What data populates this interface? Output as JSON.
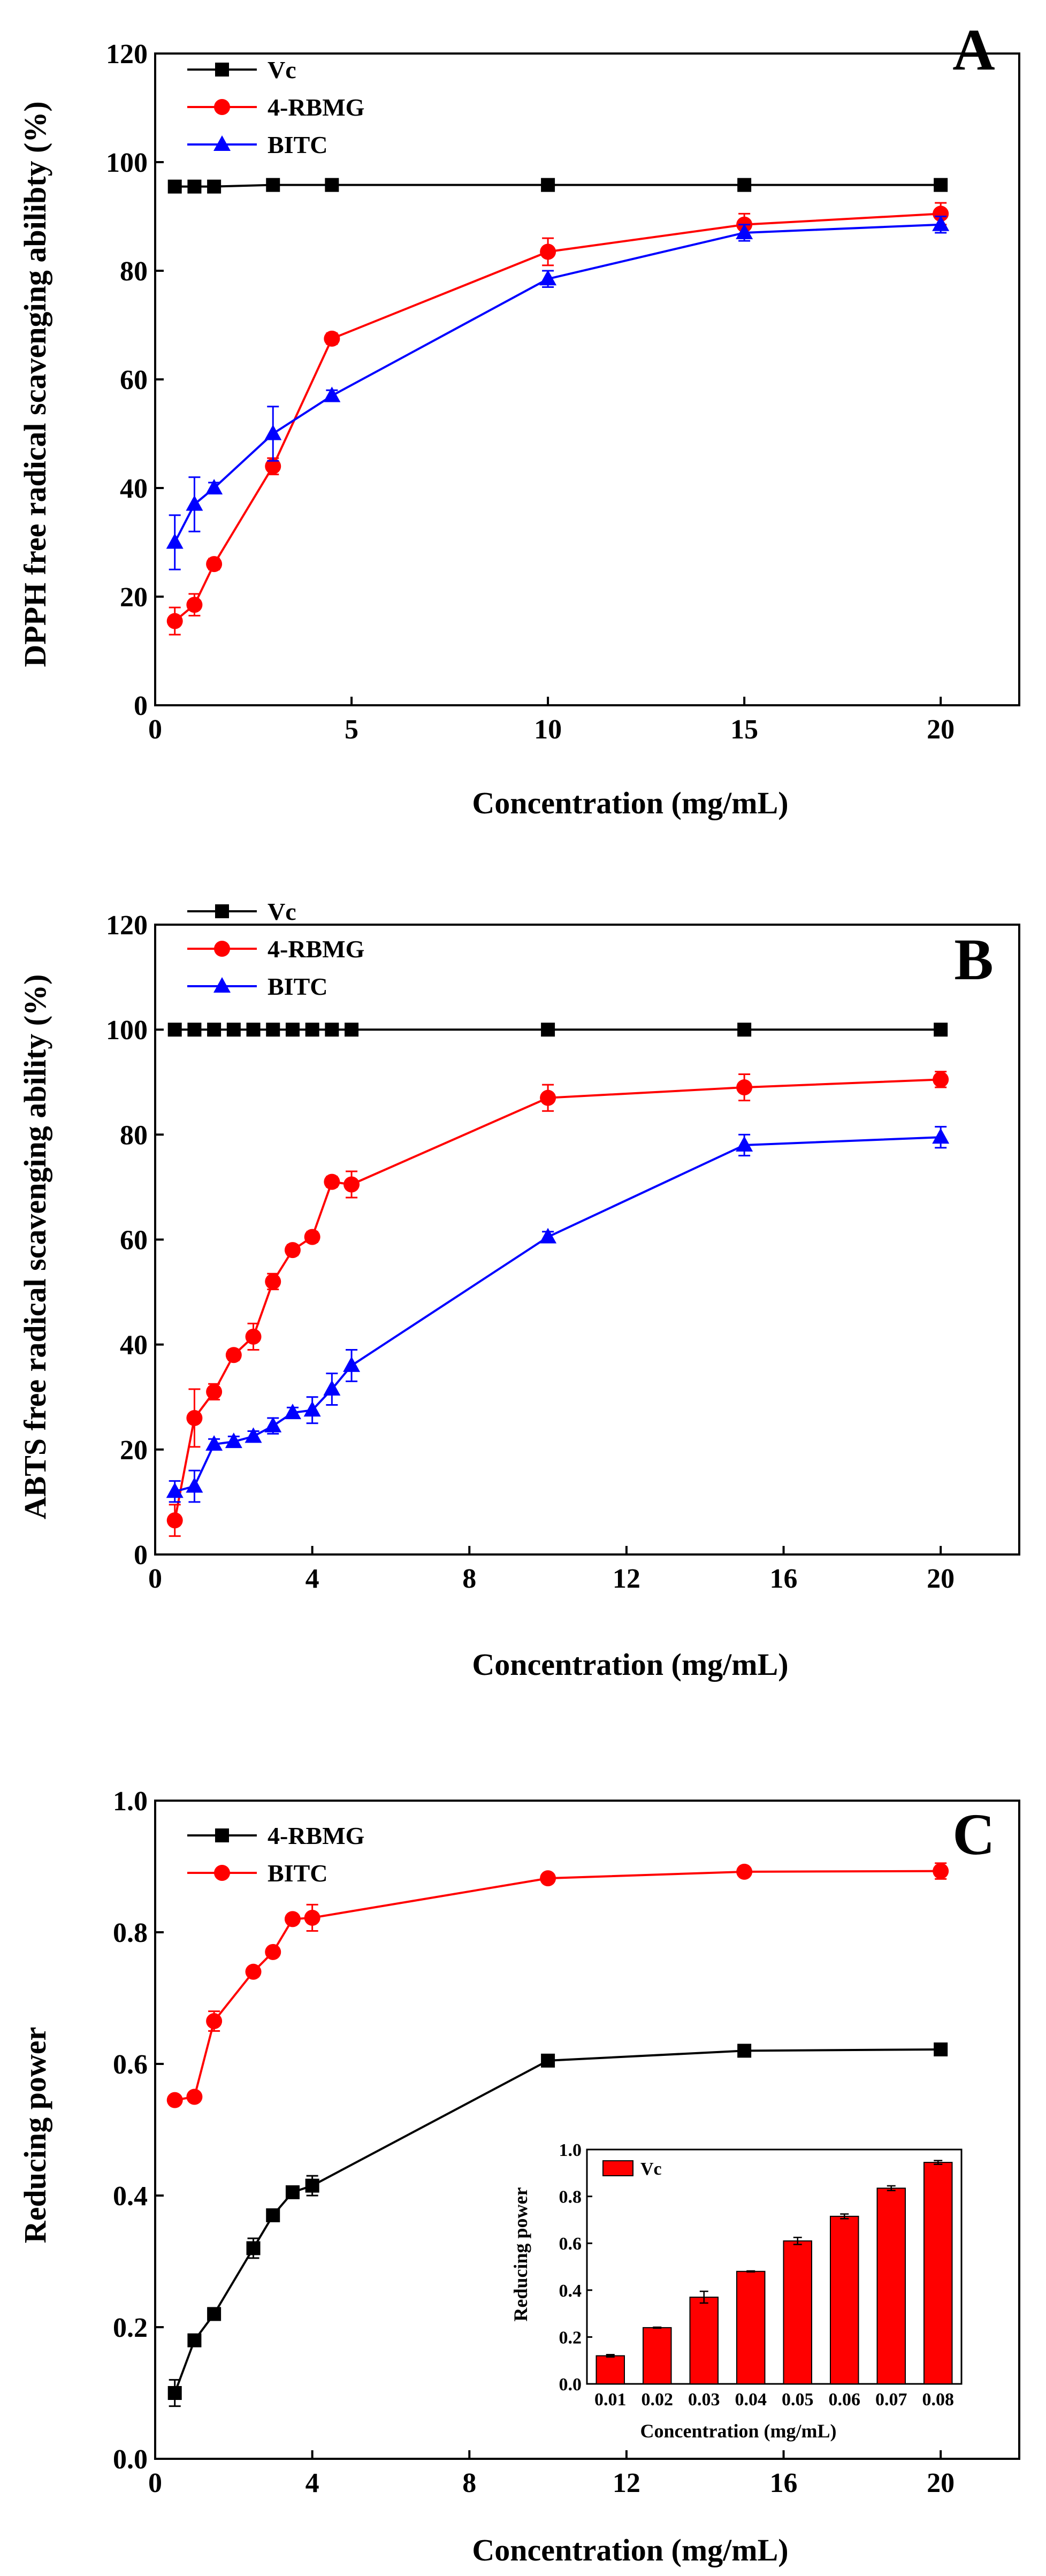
{
  "chart_data": [
    {
      "type": "line",
      "panel": "A",
      "xlabel": "Concentration (mg/mL)",
      "ylabel": "DPPH free radical scavenging abilibty (%)",
      "xlim": [
        0,
        22
      ],
      "ylim": [
        0,
        120
      ],
      "xticks": [
        0,
        5,
        10,
        15,
        20
      ],
      "yticks": [
        0,
        20,
        40,
        60,
        80,
        100,
        120
      ],
      "legend_position": "top-left",
      "series": [
        {
          "name": "Vc",
          "color": "#000000",
          "marker": "square",
          "x": [
            0.5,
            1,
            1.5,
            3,
            4.5,
            10,
            15,
            20
          ],
          "y": [
            95.5,
            95.5,
            95.5,
            95.8,
            95.8,
            95.8,
            95.8,
            95.8
          ],
          "err": [
            0.5,
            0.5,
            0.5,
            0.5,
            0.5,
            0.5,
            0.5,
            0.5
          ]
        },
        {
          "name": "4-RBMG",
          "color": "#ff0000",
          "marker": "circle",
          "x": [
            0.5,
            1,
            1.5,
            3,
            4.5,
            10,
            15,
            20
          ],
          "y": [
            15.5,
            18.5,
            26,
            44,
            67.5,
            83.5,
            88.5,
            90.5
          ],
          "err": [
            2.5,
            2,
            1,
            1.5,
            1,
            2.5,
            2,
            2
          ]
        },
        {
          "name": "BITC",
          "color": "#0000ff",
          "marker": "triangle",
          "x": [
            0.5,
            1,
            1.5,
            3,
            4.5,
            10,
            15,
            20
          ],
          "y": [
            30,
            37,
            40,
            50,
            57,
            78.5,
            87,
            88.5
          ],
          "err": [
            5,
            5,
            1,
            5,
            1,
            1.5,
            1.5,
            1.5
          ]
        }
      ]
    },
    {
      "type": "line",
      "panel": "B",
      "xlabel": "Concentration (mg/mL)",
      "ylabel": "ABTS free radical scavenging ability (%)",
      "xlim": [
        0,
        22
      ],
      "ylim": [
        0,
        120
      ],
      "xticks": [
        0,
        4,
        8,
        12,
        16,
        20
      ],
      "yticks": [
        0,
        20,
        40,
        60,
        80,
        100,
        120
      ],
      "legend_position": "top-left",
      "series": [
        {
          "name": "Vc",
          "color": "#000000",
          "marker": "square",
          "x": [
            0.5,
            1,
            1.5,
            2,
            2.5,
            3,
            3.5,
            4,
            4.5,
            5,
            10,
            15,
            20
          ],
          "y": [
            100,
            100,
            100,
            100,
            100,
            100,
            100,
            100,
            100,
            100,
            100,
            100,
            100
          ],
          "err": [
            0,
            0,
            0,
            0,
            0,
            0,
            0,
            0,
            0,
            0,
            0,
            0,
            0
          ]
        },
        {
          "name": "4-RBMG",
          "color": "#ff0000",
          "marker": "circle",
          "x": [
            0.5,
            1,
            1.5,
            2,
            2.5,
            3,
            3.5,
            4,
            4.5,
            5,
            10,
            15,
            20
          ],
          "y": [
            6.5,
            26,
            31,
            38,
            41.5,
            52,
            58,
            60.5,
            71,
            70.5,
            87,
            89,
            90.5
          ],
          "err": [
            3,
            5.5,
            1.5,
            1,
            2.5,
            1.5,
            1,
            1,
            1,
            2.5,
            2.5,
            2.5,
            1.5
          ]
        },
        {
          "name": "BITC",
          "color": "#0000ff",
          "marker": "triangle",
          "x": [
            0.5,
            1,
            1.5,
            2,
            2.5,
            3,
            3.5,
            4,
            4.5,
            5,
            10,
            15,
            20
          ],
          "y": [
            12,
            13,
            21,
            21.5,
            22.5,
            24.5,
            27,
            27.5,
            31.5,
            36,
            60.5,
            78,
            79.5
          ],
          "err": [
            2,
            3,
            1,
            1,
            1,
            1.5,
            1,
            2.5,
            3,
            3,
            1,
            2,
            2
          ]
        }
      ]
    },
    {
      "type": "line",
      "panel": "C",
      "xlabel": "Concentration (mg/mL)",
      "ylabel": "Reducing power",
      "xlim": [
        0,
        22
      ],
      "ylim": [
        0,
        1.0
      ],
      "xticks": [
        0,
        4,
        8,
        12,
        16,
        20
      ],
      "yticks": [
        0.0,
        0.2,
        0.4,
        0.6,
        0.8,
        1.0
      ],
      "legend_position": "top-left",
      "series": [
        {
          "name": "4-RBMG",
          "color": "#000000",
          "marker": "square",
          "x": [
            0.5,
            1,
            1.5,
            2.5,
            3,
            3.5,
            4,
            10,
            15,
            20
          ],
          "y": [
            0.1,
            0.18,
            0.22,
            0.32,
            0.37,
            0.405,
            0.415,
            0.605,
            0.62,
            0.622
          ],
          "err": [
            0.02,
            0.005,
            0.005,
            0.015,
            0.005,
            0.005,
            0.015,
            0.005,
            0.005,
            0.005
          ]
        },
        {
          "name": "BITC",
          "color": "#ff0000",
          "marker": "circle",
          "x": [
            0.5,
            1,
            1.5,
            2.5,
            3,
            3.5,
            4,
            10,
            15,
            20
          ],
          "y": [
            0.545,
            0.55,
            0.665,
            0.74,
            0.77,
            0.82,
            0.822,
            0.882,
            0.892,
            0.893
          ],
          "err": [
            0.005,
            0.005,
            0.015,
            0.005,
            0.005,
            0.005,
            0.02,
            0.005,
            0.005,
            0.012
          ]
        }
      ]
    },
    {
      "type": "bar",
      "panel": "C-inset",
      "xlabel": "Concentration (mg/mL)",
      "ylabel": "Reducing power",
      "ylim": [
        0,
        1.0
      ],
      "yticks": [
        0.0,
        0.2,
        0.4,
        0.6,
        0.8,
        1.0
      ],
      "legend_position": "top-left",
      "categories": [
        "0.01",
        "0.02",
        "0.03",
        "0.04",
        "0.05",
        "0.06",
        "0.07",
        "0.08"
      ],
      "series": [
        {
          "name": "Vc",
          "color": "#ff0000",
          "values": [
            0.12,
            0.24,
            0.37,
            0.48,
            0.61,
            0.715,
            0.835,
            0.945
          ],
          "err": [
            0.005,
            0.002,
            0.025,
            0.002,
            0.015,
            0.01,
            0.01,
            0.008
          ]
        }
      ]
    }
  ],
  "panels": {
    "A": {
      "letter": "A",
      "xlabel": "Concentration (mg/mL)",
      "ylabel": "DPPH free radical scavenging abilibty (%)"
    },
    "B": {
      "letter": "B",
      "xlabel": "Concentration (mg/mL)",
      "ylabel": "ABTS free radical scavenging ability (%)"
    },
    "C": {
      "letter": "C",
      "xlabel": "Concentration (mg/mL)",
      "ylabel": "Reducing power"
    },
    "inset": {
      "xlabel": "Concentration (mg/mL)",
      "ylabel": "Reducing power"
    }
  }
}
